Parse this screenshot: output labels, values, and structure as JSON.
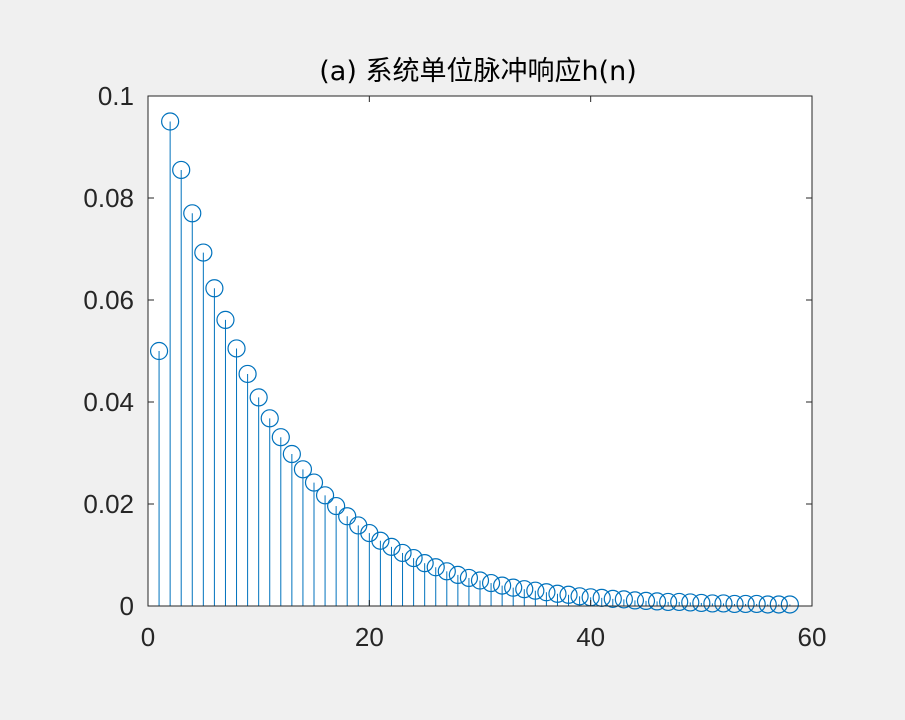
{
  "chart_data": {
    "type": "stem",
    "title": "(a) 系统单位脉冲响应h(n)",
    "xlabel": "",
    "ylabel": "",
    "xlim": [
      0,
      60
    ],
    "ylim": [
      0,
      0.1
    ],
    "xticks": [
      0,
      20,
      40,
      60
    ],
    "xtick_labels": [
      "0",
      "20",
      "40",
      "60"
    ],
    "yticks": [
      0,
      0.02,
      0.04,
      0.06,
      0.08,
      0.1
    ],
    "ytick_labels": [
      "0",
      "0.02",
      "0.04",
      "0.06",
      "0.08",
      "0.1"
    ],
    "grid": false,
    "color": "#0072bd",
    "marker": "open-circle",
    "x": [
      1,
      2,
      3,
      4,
      5,
      6,
      7,
      8,
      9,
      10,
      11,
      12,
      13,
      14,
      15,
      16,
      17,
      18,
      19,
      20,
      21,
      22,
      23,
      24,
      25,
      26,
      27,
      28,
      29,
      30,
      31,
      32,
      33,
      34,
      35,
      36,
      37,
      38,
      39,
      40,
      41,
      42,
      43,
      44,
      45,
      46,
      47,
      48,
      49,
      50,
      51,
      52,
      53,
      54,
      55,
      56,
      57,
      58
    ],
    "values": [
      0.05,
      0.095,
      0.0855,
      0.077,
      0.0693,
      0.0623,
      0.0561,
      0.0505,
      0.0455,
      0.0409,
      0.0368,
      0.0331,
      0.0298,
      0.0268,
      0.0242,
      0.0217,
      0.0196,
      0.0176,
      0.0158,
      0.0143,
      0.0128,
      0.0116,
      0.0104,
      0.0094,
      0.0084,
      0.0076,
      0.0068,
      0.0061,
      0.0055,
      0.005,
      0.0045,
      0.004,
      0.0036,
      0.0033,
      0.003,
      0.0027,
      0.0024,
      0.0022,
      0.0019,
      0.0017,
      0.0016,
      0.0014,
      0.0013,
      0.0011,
      0.001,
      0.0009,
      0.0008,
      0.0008,
      0.0007,
      0.0006,
      0.0005,
      0.0005,
      0.0004,
      0.0004,
      0.0004,
      0.0003,
      0.0003,
      0.0003
    ]
  }
}
